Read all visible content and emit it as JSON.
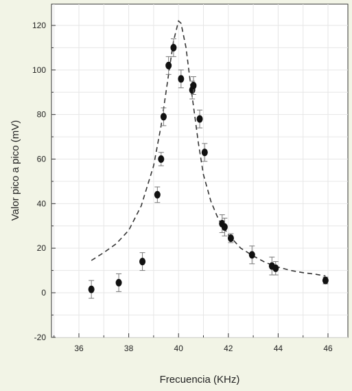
{
  "chart_data": {
    "type": "scatter",
    "xlabel": "Frecuencia (KHz)",
    "ylabel": "Valor pico a pico (mV)",
    "xlim": [
      35,
      47
    ],
    "ylim": [
      -20,
      130
    ],
    "xticks": [
      36,
      38,
      40,
      42,
      44,
      46
    ],
    "yticks": [
      -20,
      0,
      20,
      40,
      60,
      80,
      100,
      120
    ],
    "grid": true,
    "series": [
      {
        "kind": "points-with-error",
        "x": [
          36.5,
          37.6,
          38.55,
          39.15,
          39.3,
          39.4,
          39.6,
          39.8,
          40.1,
          40.55,
          40.6,
          40.85,
          41.05,
          41.75,
          41.85,
          42.1,
          42.95,
          43.75,
          43.9,
          45.9
        ],
        "y": [
          1.5,
          4.5,
          14,
          44,
          60,
          79,
          102,
          110,
          96,
          91,
          93,
          78,
          63,
          31,
          29.5,
          24.5,
          17,
          12,
          11,
          5.5
        ],
        "err": [
          4,
          4,
          4,
          3.5,
          3,
          4,
          4,
          4,
          4,
          4,
          4,
          4,
          4,
          4,
          4,
          2,
          4,
          4,
          3,
          1.5
        ]
      },
      {
        "kind": "dashed-fit",
        "x": [
          36.5,
          37.0,
          37.5,
          38.0,
          38.5,
          39.0,
          39.3,
          39.6,
          39.8,
          40.0,
          40.1,
          40.3,
          40.5,
          40.8,
          41.0,
          41.3,
          41.6,
          42.0,
          42.5,
          43.0,
          43.5,
          44.0,
          44.5,
          45.0,
          45.5,
          45.9
        ],
        "y": [
          14.5,
          18,
          22,
          28,
          39,
          57,
          75,
          98,
          113,
          122,
          121,
          110,
          92,
          67,
          53,
          41,
          33,
          26,
          20,
          16.5,
          13.5,
          11.5,
          10,
          9,
          8.3,
          7.5
        ]
      }
    ]
  }
}
